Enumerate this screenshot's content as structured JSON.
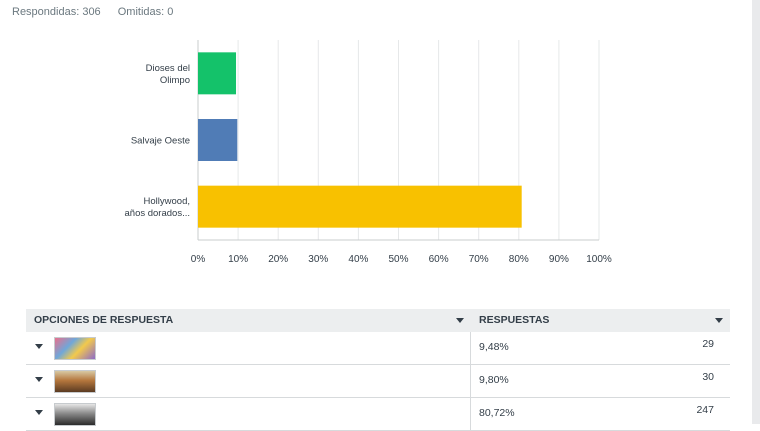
{
  "summary": {
    "answered": "Respondidas: 306",
    "skipped": "Omitidas: 0"
  },
  "chart_data": {
    "type": "bar",
    "orientation": "horizontal",
    "categories": [
      [
        "Dioses del",
        "Olimpo"
      ],
      [
        "Salvaje Oeste"
      ],
      [
        "Hollywood,",
        "años dorados..."
      ]
    ],
    "values": [
      9.48,
      9.8,
      80.72
    ],
    "colors": [
      "#14c26a",
      "#507cb6",
      "#f8c100"
    ],
    "xlim": [
      0,
      100
    ],
    "ticks": [
      "0%",
      "10%",
      "20%",
      "30%",
      "40%",
      "50%",
      "60%",
      "70%",
      "80%",
      "90%",
      "100%"
    ],
    "grid": true
  },
  "table": {
    "headers": {
      "options": "OPCIONES DE RESPUESTA",
      "responses": "RESPUESTAS"
    },
    "rows": [
      {
        "percent": "9,48%",
        "count": "29",
        "thumb": "olympus-image"
      },
      {
        "percent": "9,80%",
        "count": "30",
        "thumb": "wild-west-image"
      },
      {
        "percent": "80,72%",
        "count": "247",
        "thumb": "hollywood-image"
      }
    ]
  }
}
